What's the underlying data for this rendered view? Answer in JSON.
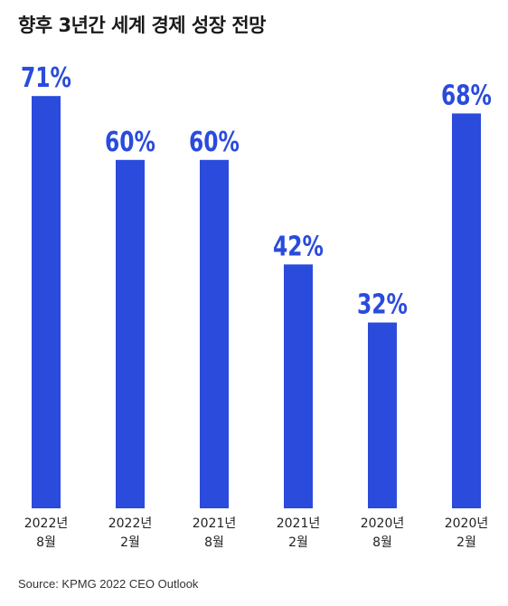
{
  "title": "향후 3년간 세계 경제 성장 전망",
  "source": "Source: KPMG 2022 CEO Outlook",
  "colors": {
    "bar": "#2a4bdc",
    "label": "#2a4bdc",
    "text": "#222222"
  },
  "chart_data": {
    "type": "bar",
    "title": "향후 3년간 세계 경제 성장 전망",
    "categories": [
      [
        "2022년",
        "8월"
      ],
      [
        "2022년",
        "2월"
      ],
      [
        "2021년",
        "8월"
      ],
      [
        "2021년",
        "2월"
      ],
      [
        "2020년",
        "8월"
      ],
      [
        "2020년",
        "2월"
      ]
    ],
    "values": [
      71,
      60,
      60,
      42,
      32,
      68
    ],
    "data_labels": [
      "71%",
      "60%",
      "60%",
      "42%",
      "32%",
      "68%"
    ],
    "ylim": [
      0,
      100
    ],
    "grid": false,
    "legend": "none"
  }
}
